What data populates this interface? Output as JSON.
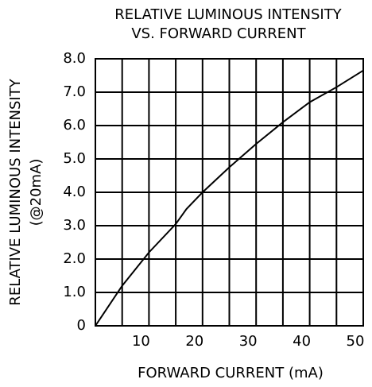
{
  "chart_data": {
    "type": "line",
    "title": "RELATIVE LUMINOUS INTENSITY",
    "subtitle": "VS. FORWARD CURRENT",
    "ylabel": [
      "RELATIVE LUMINOUS INTENSITY",
      "(@20mA)"
    ],
    "xlabel": "FORWARD CURRENT (mA)",
    "x": [
      0,
      5,
      10,
      15,
      17,
      20,
      25,
      30,
      35,
      40,
      45,
      50
    ],
    "series": [
      {
        "color": "#000000",
        "values": [
          0,
          1.2,
          2.2,
          3.05,
          3.5,
          4.0,
          4.75,
          5.45,
          6.1,
          6.7,
          7.15,
          7.65
        ]
      }
    ],
    "xlim": [
      0,
      50
    ],
    "xticks": [
      10,
      20,
      30,
      40,
      50
    ],
    "xminor_ticks": [
      5,
      15,
      25,
      35,
      45
    ],
    "ylim": [
      0,
      8
    ],
    "yticks": [
      0,
      {
        "value": 1,
        "label": "1.0"
      },
      {
        "value": 2,
        "label": "2.0"
      },
      {
        "value": 3,
        "label": "3.0"
      },
      {
        "value": 4,
        "label": "4.0"
      },
      {
        "value": 5,
        "label": "5.0"
      },
      {
        "value": 6,
        "label": "6.0"
      },
      {
        "value": 7,
        "label": "7.0"
      },
      {
        "value": 8,
        "label": "8.0"
      }
    ],
    "grid": true
  }
}
